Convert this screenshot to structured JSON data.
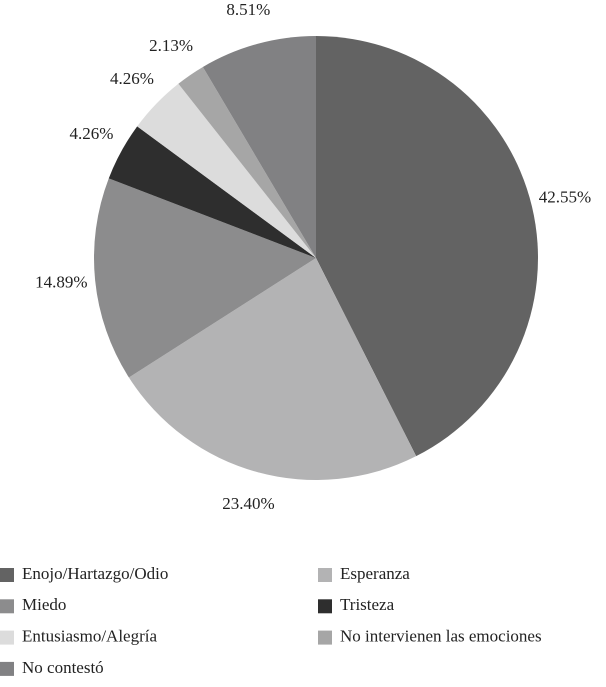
{
  "chart_data": {
    "type": "pie",
    "categories": [
      "Enojo/Hartazgo/Odio",
      "Esperanza",
      "Miedo",
      "Tristeza",
      "Entusiasmo/Alegría",
      "No intervienen las emociones",
      "No contestó"
    ],
    "values": [
      42.55,
      23.4,
      14.89,
      4.26,
      4.26,
      2.13,
      8.51
    ],
    "value_labels": [
      "42.55%",
      "23.40%",
      "14.89%",
      "4.26%",
      "4.26%",
      "2.13%",
      "8.51%"
    ],
    "colors": [
      "#636363",
      "#b3b3b4",
      "#8c8c8d",
      "#2e2e2e",
      "#dcdcdc",
      "#a6a6a6",
      "#818183"
    ],
    "legend": "bottom"
  }
}
